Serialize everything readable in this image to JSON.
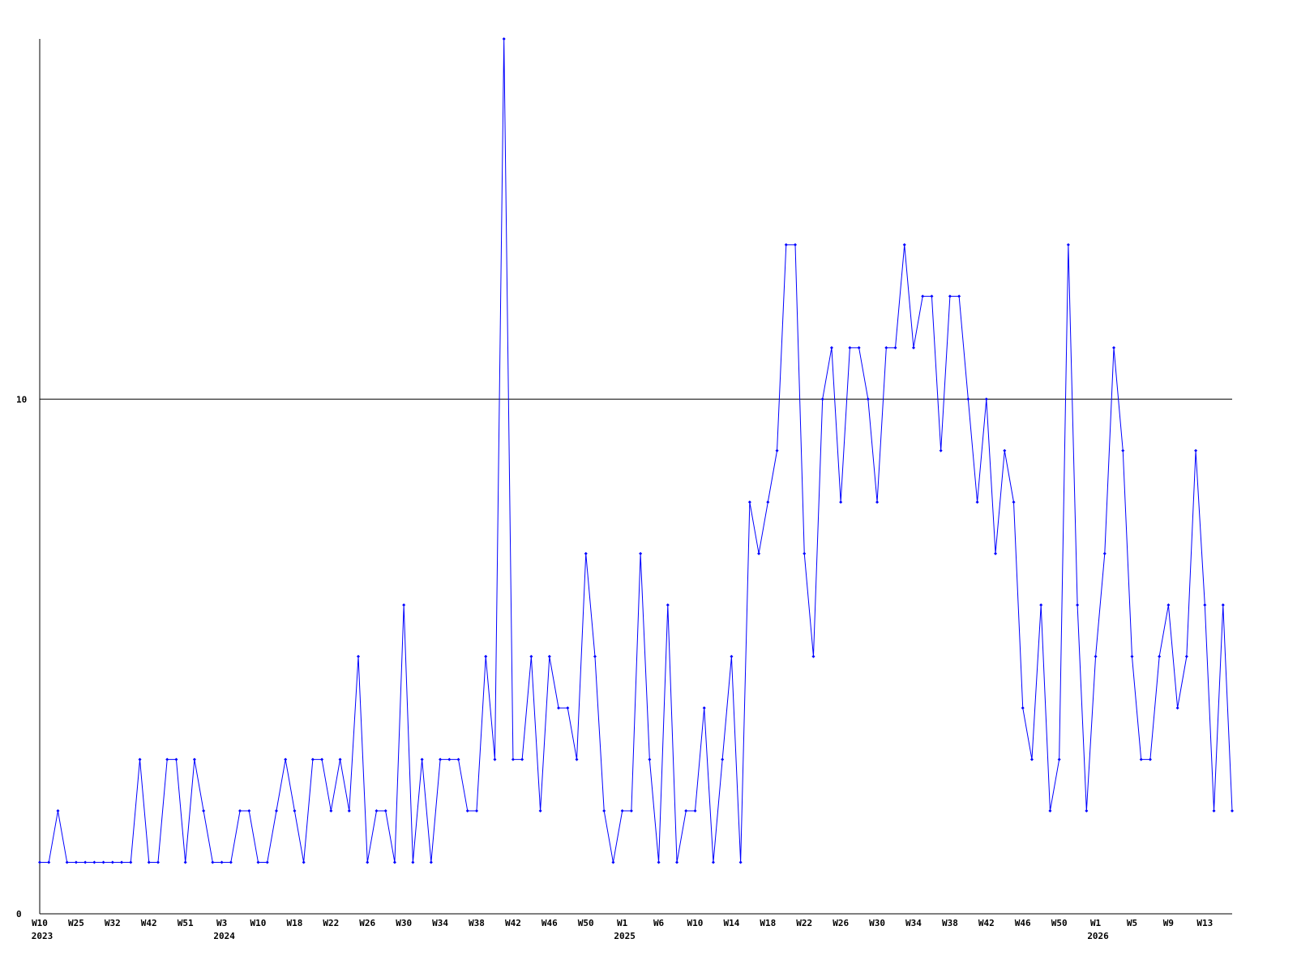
{
  "chart_data": {
    "type": "line",
    "categories": [
      "W10",
      null,
      null,
      null,
      "W25",
      null,
      null,
      null,
      "W32",
      null,
      null,
      null,
      "W42",
      null,
      null,
      null,
      "W51",
      null,
      null,
      null,
      "W3",
      null,
      null,
      null,
      "W10",
      null,
      null,
      null,
      "W18",
      null,
      null,
      null,
      "W22",
      null,
      null,
      null,
      "W26",
      null,
      null,
      null,
      "W30",
      null,
      null,
      null,
      "W34",
      null,
      null,
      null,
      "W38",
      null,
      null,
      null,
      "W42",
      null,
      null,
      null,
      "W46",
      null,
      null,
      null,
      "W50",
      null,
      null,
      null,
      "W1",
      null,
      null,
      null,
      "W6",
      null,
      null,
      null,
      "W10",
      null,
      null,
      null,
      "W14",
      null,
      null,
      null,
      "W18",
      null,
      null,
      null,
      "W22",
      null,
      null,
      null,
      "W26",
      null,
      null,
      null,
      "W30",
      null,
      null,
      null,
      "W34",
      null,
      null,
      null,
      "W38",
      null,
      null,
      null,
      "W42",
      null,
      null,
      null,
      "W46",
      null,
      null,
      null,
      "W50",
      null,
      null,
      null,
      "W1",
      null,
      null,
      null,
      "W5",
      null,
      null,
      null,
      "W9",
      null,
      null,
      null,
      "W13",
      null,
      null,
      null
    ],
    "years": [
      "2023",
      null,
      null,
      null,
      null,
      null,
      null,
      null,
      null,
      null,
      null,
      null,
      null,
      null,
      null,
      null,
      null,
      null,
      null,
      null,
      "2024",
      null,
      null,
      null,
      null,
      null,
      null,
      null,
      null,
      null,
      null,
      null,
      null,
      null,
      null,
      null,
      null,
      null,
      null,
      null,
      null,
      null,
      null,
      null,
      null,
      null,
      null,
      null,
      null,
      null,
      null,
      null,
      null,
      null,
      null,
      null,
      null,
      null,
      null,
      null,
      null,
      null,
      null,
      null,
      "2025",
      null,
      null,
      null,
      null,
      null,
      null,
      null,
      null,
      null,
      null,
      null,
      null,
      null,
      null,
      null,
      null,
      null,
      null,
      null,
      null,
      null,
      null,
      null,
      null,
      null,
      null,
      null,
      null,
      null,
      null,
      null,
      null,
      null,
      null,
      null,
      null,
      null,
      null,
      null,
      null,
      null,
      null,
      null,
      null,
      null,
      null,
      null,
      null,
      null,
      null,
      null,
      "2026",
      null,
      null,
      null,
      null,
      null,
      null,
      null,
      null,
      null,
      null,
      null,
      null,
      null,
      null,
      null
    ],
    "series": [
      {
        "color": "#0000ff",
        "values": [
          1,
          1,
          2,
          1,
          1,
          1,
          1,
          1,
          1,
          1,
          1,
          3,
          1,
          1,
          3,
          3,
          1,
          3,
          2,
          1,
          1,
          1,
          2,
          2,
          1,
          1,
          2,
          3,
          2,
          1,
          3,
          3,
          2,
          3,
          2,
          5,
          1,
          2,
          2,
          1,
          6,
          1,
          3,
          1,
          3,
          3,
          3,
          2,
          2,
          5,
          3,
          17,
          3,
          3,
          5,
          2,
          5,
          4,
          4,
          3,
          7,
          5,
          2,
          1,
          2,
          2,
          7,
          3,
          1,
          6,
          1,
          2,
          2,
          4,
          1,
          3,
          5,
          1,
          8,
          7,
          8,
          9,
          13,
          13,
          7,
          5,
          10,
          11,
          8,
          11,
          11,
          10,
          8,
          11,
          11,
          13,
          11,
          12,
          12,
          9,
          12,
          12,
          10,
          8,
          10,
          7,
          9,
          8,
          4,
          3,
          6,
          2,
          3,
          13,
          6,
          2,
          5,
          7,
          11,
          9,
          5,
          3,
          3,
          5,
          6,
          4,
          5,
          9,
          6,
          2,
          6,
          2
        ]
      }
    ],
    "ylim": [
      0,
      17
    ],
    "yticks": [
      0,
      10
    ],
    "grid": true
  }
}
